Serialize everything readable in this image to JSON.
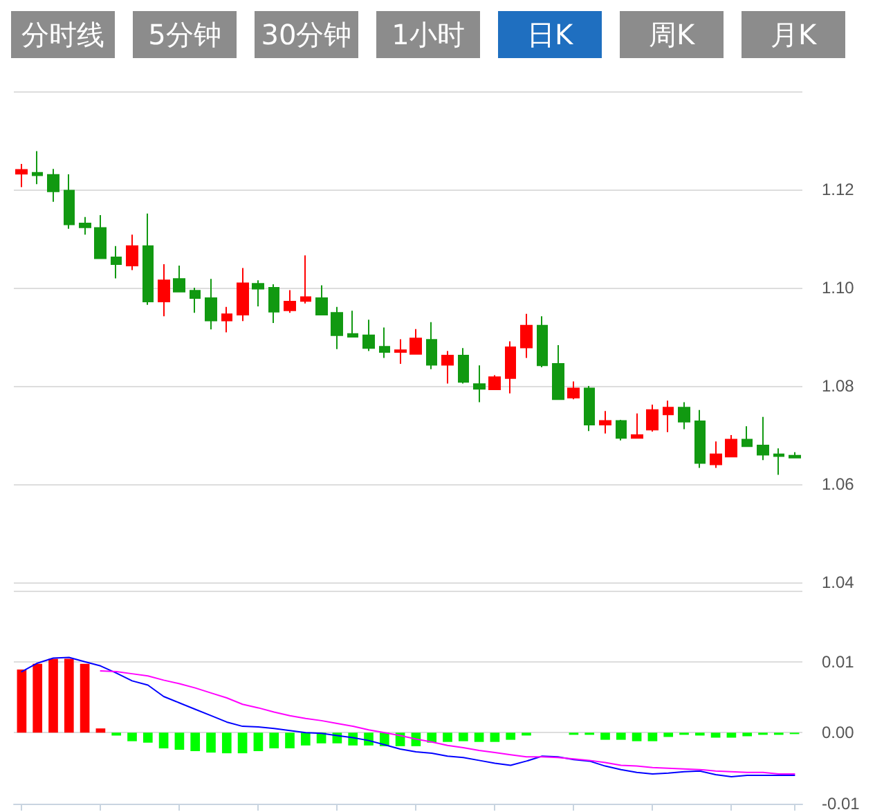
{
  "chart_data": [
    {
      "type": "candlestick",
      "annotations": [
        "分时线",
        "5分钟",
        "30分钟",
        "1小时",
        "日K",
        "周K",
        "月K"
      ],
      "categories": [
        null,
        null,
        null,
        null,
        null,
        null,
        null,
        null,
        null,
        null,
        null,
        null,
        null,
        null,
        null,
        null,
        null,
        null,
        null,
        null,
        null,
        null,
        null,
        null,
        null,
        null,
        null,
        null,
        null,
        null,
        null,
        null,
        null,
        null,
        null,
        null,
        null,
        null,
        null,
        null,
        null,
        null,
        null,
        null,
        null,
        null,
        null,
        null,
        null,
        null
      ],
      "ohlc": [
        [
          1.1232,
          1.1252,
          1.1205,
          1.124
        ],
        [
          1.1234,
          1.1278,
          1.1211,
          1.1229
        ],
        [
          1.123,
          1.1242,
          1.1175,
          1.1196
        ],
        [
          1.1198,
          1.1231,
          1.112,
          1.1129
        ],
        [
          1.1131,
          1.1144,
          1.1108,
          1.1123
        ],
        [
          1.1122,
          1.1148,
          1.106,
          1.106
        ],
        [
          1.1062,
          1.1085,
          1.1019,
          1.1048
        ],
        [
          1.1045,
          1.1108,
          1.1036,
          1.1085
        ],
        [
          1.1085,
          1.1151,
          1.0965,
          1.0972
        ],
        [
          1.0972,
          1.1048,
          1.0942,
          1.1015
        ],
        [
          1.1018,
          1.1045,
          1.0992,
          1.0992
        ],
        [
          1.0994,
          1.1,
          1.0949,
          1.0979
        ],
        [
          1.0979,
          1.1018,
          1.0915,
          1.0933
        ],
        [
          1.0933,
          1.0961,
          1.0909,
          1.0946
        ],
        [
          1.0945,
          1.104,
          1.0932,
          1.1009
        ],
        [
          1.1008,
          1.1015,
          1.0962,
          1.0998
        ],
        [
          1.1,
          1.1007,
          1.0928,
          1.0951
        ],
        [
          1.0954,
          1.0995,
          1.0949,
          1.0972
        ],
        [
          1.0973,
          1.1066,
          1.0968,
          1.0981
        ],
        [
          1.0979,
          1.1005,
          1.0945,
          1.0945
        ],
        [
          1.0949,
          1.0961,
          1.0875,
          1.0903
        ],
        [
          1.0906,
          1.0953,
          1.0899,
          1.09
        ],
        [
          1.0903,
          1.0935,
          1.0871,
          1.0877
        ],
        [
          1.088,
          1.0919,
          1.0857,
          1.0869
        ],
        [
          1.0869,
          1.0895,
          1.0845,
          1.0873
        ],
        [
          1.0865,
          1.0916,
          1.0865,
          1.0897
        ],
        [
          1.0894,
          1.093,
          1.0834,
          1.0843
        ],
        [
          1.0843,
          1.0871,
          1.0805,
          1.0862
        ],
        [
          1.0862,
          1.0877,
          1.0805,
          1.0808
        ],
        [
          1.0804,
          1.0842,
          1.0767,
          1.0794
        ],
        [
          1.0793,
          1.0822,
          1.0793,
          1.0818
        ],
        [
          1.0816,
          1.0891,
          1.0785,
          1.0879
        ],
        [
          1.0878,
          1.0947,
          1.0857,
          1.0923
        ],
        [
          1.0923,
          1.0942,
          1.0838,
          1.0842
        ],
        [
          1.0845,
          1.0883,
          1.0773,
          1.0773
        ],
        [
          1.0776,
          1.0809,
          1.0773,
          1.0795
        ],
        [
          1.0795,
          1.08,
          1.0708,
          1.0721
        ],
        [
          1.0721,
          1.0749,
          1.0703,
          1.0729
        ],
        [
          1.0729,
          1.0731,
          1.0689,
          1.0694
        ],
        [
          1.0694,
          1.0744,
          1.0694,
          1.07
        ],
        [
          1.0711,
          1.0762,
          1.0707,
          1.0751
        ],
        [
          1.0742,
          1.077,
          1.0706,
          1.0756
        ],
        [
          1.0756,
          1.0767,
          1.0712,
          1.0727
        ],
        [
          1.0728,
          1.0751,
          1.0633,
          1.0643
        ],
        [
          1.064,
          1.0687,
          1.0633,
          1.0661
        ],
        [
          1.0656,
          1.07,
          1.0656,
          1.0691
        ],
        [
          1.0691,
          1.0718,
          1.0677,
          1.0677
        ],
        [
          1.0679,
          1.0737,
          1.0649,
          1.066
        ],
        [
          1.0661,
          1.0673,
          1.0619,
          1.0657
        ],
        [
          1.0658,
          1.0665,
          1.0654,
          1.0654
        ]
      ],
      "colors": [
        "#ff0000",
        "#119911",
        "#119911",
        "#119911",
        "#119911",
        "#119911",
        "#119911",
        "#ff0000",
        "#119911",
        "#ff0000",
        "#119911",
        "#119911",
        "#119911",
        "#ff0000",
        "#ff0000",
        "#119911",
        "#119911",
        "#ff0000",
        "#ff0000",
        "#119911",
        "#119911",
        "#119911",
        "#119911",
        "#119911",
        "#ff0000",
        "#ff0000",
        "#119911",
        "#ff0000",
        "#119911",
        "#119911",
        "#ff0000",
        "#ff0000",
        "#ff0000",
        "#119911",
        "#119911",
        "#ff0000",
        "#119911",
        "#ff0000",
        "#119911",
        "#ff0000",
        "#ff0000",
        "#ff0000",
        "#119911",
        "#119911",
        "#ff0000",
        "#ff0000",
        "#119911",
        "#119911",
        "#119911",
        "#119911"
      ],
      "ylim": [
        1.04,
        1.14
      ],
      "yticks": [
        {
          "value": 1.04,
          "label": "1.04"
        },
        {
          "value": 1.06,
          "label": "1.06"
        },
        {
          "value": 1.08,
          "label": "1.08"
        },
        {
          "value": 1.1,
          "label": "1.10"
        },
        {
          "value": 1.12,
          "label": "1.12"
        },
        {
          "value": 1.14,
          "label": null
        }
      ],
      "grid": "y",
      "tick_labels": "y"
    },
    {
      "type": "bar",
      "categories": [
        null,
        null,
        null,
        null,
        null,
        null,
        null,
        null,
        null,
        null,
        null,
        null,
        null,
        null,
        null,
        null,
        null,
        null,
        null,
        null,
        null,
        null,
        null,
        null,
        null,
        null,
        null,
        null,
        null,
        null,
        null,
        null,
        null,
        null,
        null,
        null,
        null,
        null,
        null,
        null,
        null,
        null,
        null,
        null,
        null,
        null,
        null,
        null,
        null,
        null
      ],
      "series": [
        {
          "type": "bar",
          "values": [
            0.0089,
            0.0097,
            0.0104,
            0.0104,
            0.0097,
            0.0006,
            -0.0004,
            -0.0012,
            -0.0014,
            -0.0022,
            -0.0024,
            -0.0026,
            -0.0028,
            -0.0029,
            -0.0029,
            -0.0026,
            -0.0022,
            -0.0022,
            -0.0018,
            -0.0015,
            -0.0015,
            -0.0018,
            -0.0018,
            -0.0019,
            -0.0019,
            -0.0019,
            -0.0014,
            -0.0013,
            -0.0012,
            -0.0013,
            -0.0013,
            -0.001,
            -0.0004,
            0,
            0,
            -0.0003,
            -0.0003,
            -0.001,
            -0.001,
            -0.0012,
            -0.0012,
            -0.0006,
            -0.0003,
            -0.0004,
            -0.0007,
            -0.0007,
            -0.0005,
            -0.0003,
            -0.0003,
            -0.0002
          ],
          "colors": [
            "#ff0000",
            "#ff0000",
            "#ff0000",
            "#ff0000",
            "#ff0000",
            "#ff0000",
            "#00ff00",
            "#00ff00",
            "#00ff00",
            "#00ff00",
            "#00ff00",
            "#00ff00",
            "#00ff00",
            "#00ff00",
            "#00ff00",
            "#00ff00",
            "#00ff00",
            "#00ff00",
            "#00ff00",
            "#00ff00",
            "#00ff00",
            "#00ff00",
            "#00ff00",
            "#00ff00",
            "#00ff00",
            "#00ff00",
            "#00ff00",
            "#00ff00",
            "#00ff00",
            "#00ff00",
            "#00ff00",
            "#00ff00",
            "#00ff00",
            "#00ff00",
            "#00ff00",
            "#00ff00",
            "#00ff00",
            "#00ff00",
            "#00ff00",
            "#00ff00",
            "#00ff00",
            "#00ff00",
            "#00ff00",
            "#00ff00",
            "#00ff00",
            "#00ff00",
            "#00ff00",
            "#00ff00",
            "#00ff00",
            "#00ff00"
          ]
        },
        {
          "type": "line",
          "color": "#0000ff",
          "values": [
            0.0086,
            0.0098,
            0.0105,
            0.0106,
            0.01,
            0.0094,
            0.0084,
            0.0073,
            0.0067,
            0.0051,
            0.0042,
            0.0033,
            0.0024,
            0.0015,
            0.0009,
            0.0008,
            0.0006,
            0.0003,
            0.0,
            -0.0001,
            -0.0004,
            -0.0007,
            -0.0011,
            -0.0017,
            -0.0023,
            -0.0027,
            -0.0029,
            -0.0033,
            -0.0035,
            -0.0039,
            -0.0043,
            -0.0046,
            -0.004,
            -0.0033,
            -0.0034,
            -0.0038,
            -0.004,
            -0.0047,
            -0.0052,
            -0.0056,
            -0.0058,
            -0.0057,
            -0.0055,
            -0.0054,
            -0.0059,
            -0.0062,
            -0.006,
            -0.006,
            -0.006,
            -0.006
          ]
        },
        {
          "type": "line",
          "color": "#ff00ff",
          "values": [
            null,
            null,
            null,
            null,
            null,
            0.0087,
            0.0086,
            0.0083,
            0.008,
            0.0074,
            0.0069,
            0.0063,
            0.0056,
            0.0049,
            0.004,
            0.0035,
            0.0029,
            0.0024,
            0.002,
            0.0017,
            0.0013,
            0.0009,
            0.0004,
            0.0,
            -0.0004,
            -0.0009,
            -0.0013,
            -0.0018,
            -0.0021,
            -0.0025,
            -0.0028,
            -0.0031,
            -0.0034,
            -0.0034,
            -0.0035,
            -0.0037,
            -0.0039,
            -0.0042,
            -0.0046,
            -0.0047,
            -0.0049,
            -0.005,
            -0.0051,
            -0.0052,
            -0.0054,
            -0.0055,
            -0.0056,
            -0.0056,
            -0.0058,
            -0.0058
          ]
        }
      ],
      "ylim": [
        -0.01,
        0.02
      ],
      "yticks": [
        -0.01,
        {
          "value": 0,
          "label": "0.00"
        },
        0.01,
        {
          "value": 0.02,
          "label": null
        }
      ],
      "grid": "y",
      "tick_labels": "y",
      "marker": "none"
    }
  ]
}
